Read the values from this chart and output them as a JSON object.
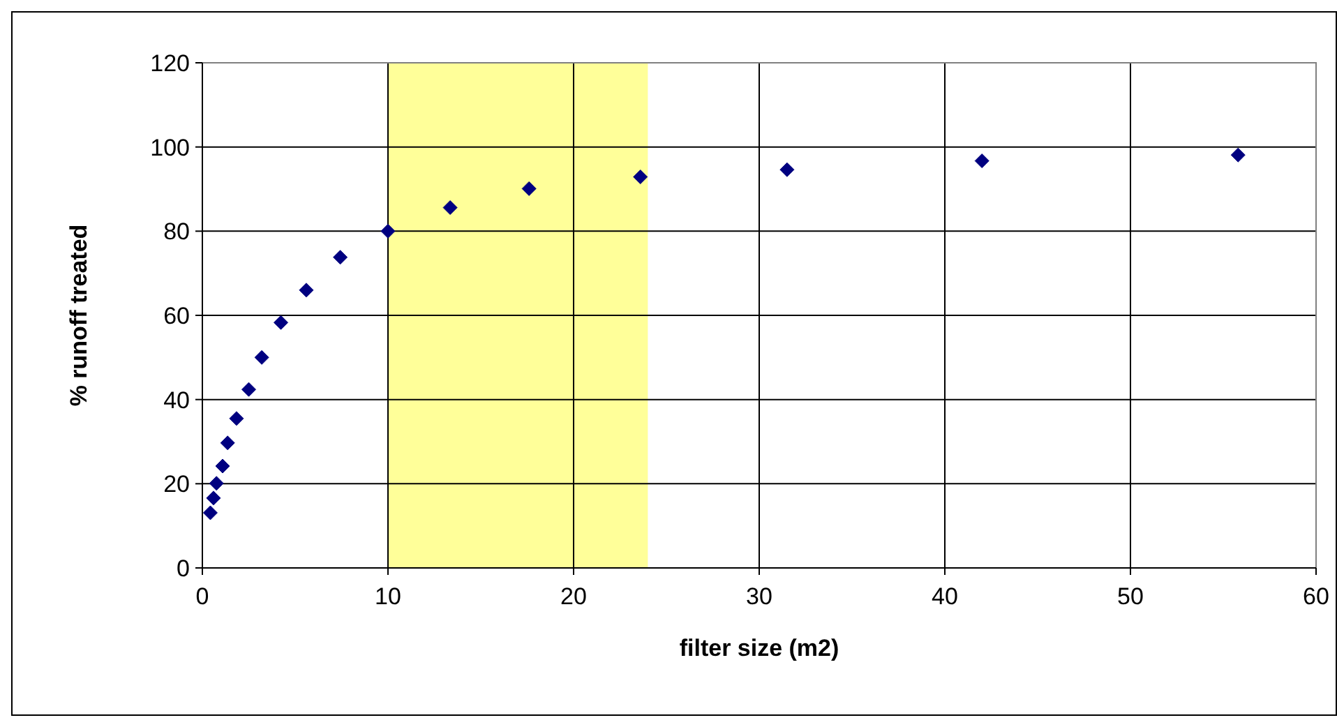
{
  "chart_data": {
    "type": "scatter",
    "xlabel": "filter size (m2)",
    "ylabel": "% runoff treated",
    "x": [
      0.43,
      0.6,
      0.76,
      1.09,
      1.36,
      1.84,
      2.5,
      3.2,
      4.23,
      5.6,
      7.43,
      10,
      13.35,
      17.6,
      23.6,
      31.5,
      42,
      55.8
    ],
    "series": [
      {
        "color": "#000080",
        "values": [
          13.1,
          16.6,
          20.1,
          24.2,
          29.7,
          35.5,
          42.4,
          50,
          58.3,
          66,
          73.8,
          80,
          85.6,
          90.1,
          92.9,
          94.6,
          96.7,
          98.1
        ]
      }
    ],
    "xlim": [
      0,
      60
    ],
    "xticks": [
      0,
      10,
      20,
      30,
      40,
      50,
      60
    ],
    "ylim": [
      0,
      120
    ],
    "yticks": [
      0,
      20,
      40,
      60,
      80,
      100,
      120
    ],
    "grid": true,
    "marker": "diamond",
    "bands": [
      {
        "axis": "x",
        "from": 10,
        "to": 24,
        "color": "#ffff99"
      }
    ]
  }
}
